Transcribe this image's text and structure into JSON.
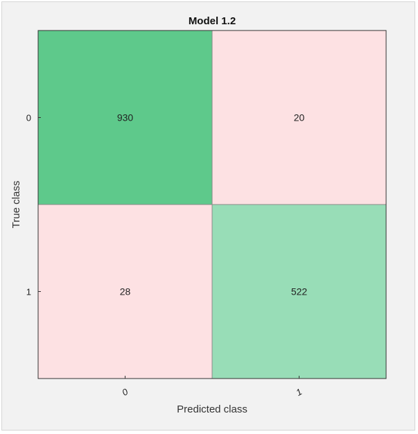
{
  "chart_data": {
    "type": "heatmap",
    "title": "Model 1.2",
    "xlabel": "Predicted class",
    "ylabel": "True class",
    "x_categories": [
      "0",
      "1"
    ],
    "y_categories": [
      "0",
      "1"
    ],
    "values": [
      [
        930,
        20
      ],
      [
        28,
        522
      ]
    ],
    "cell_colors": [
      [
        "#5ec98b",
        "#fde1e3"
      ],
      [
        "#fde1e3",
        "#98ddb7"
      ]
    ],
    "grid": false
  }
}
